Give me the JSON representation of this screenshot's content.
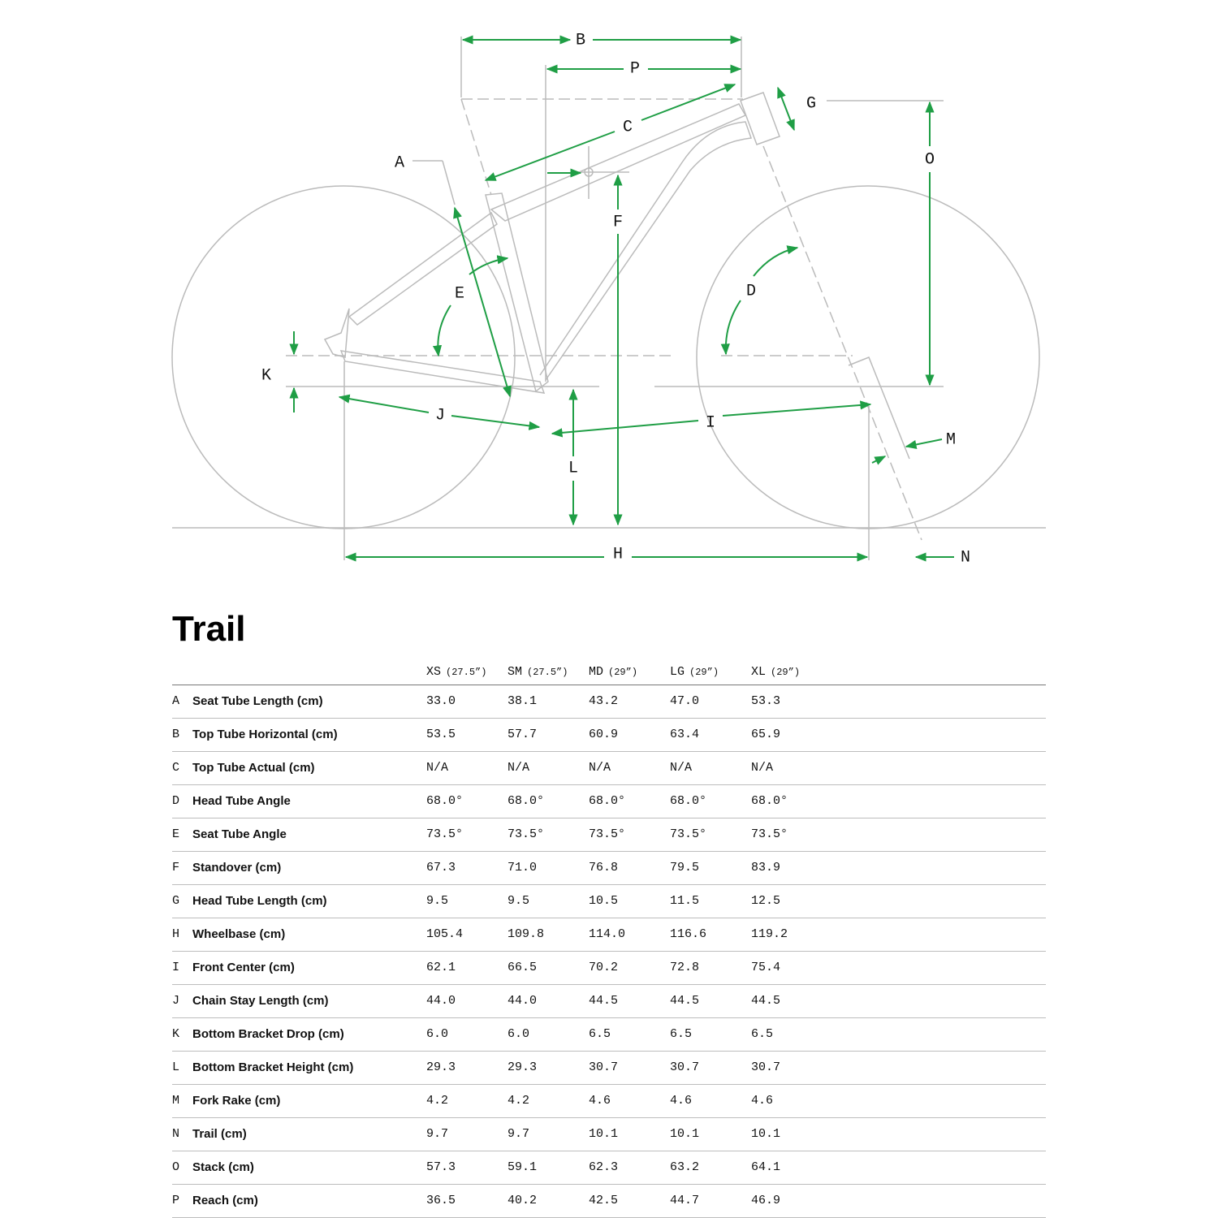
{
  "diagram": {
    "labels": [
      "A",
      "B",
      "C",
      "D",
      "E",
      "F",
      "G",
      "H",
      "I",
      "J",
      "K",
      "L",
      "M",
      "N",
      "O",
      "P"
    ]
  },
  "title": "Trail",
  "table": {
    "columns": [
      {
        "size": "XS",
        "wheel": "(27.5”)"
      },
      {
        "size": "SM",
        "wheel": "(27.5”)"
      },
      {
        "size": "MD",
        "wheel": "(29”)"
      },
      {
        "size": "LG",
        "wheel": "(29”)"
      },
      {
        "size": "XL",
        "wheel": "(29”)"
      }
    ],
    "rows": [
      {
        "letter": "A",
        "name": "Seat Tube Length (cm)",
        "values": [
          "33.0",
          "38.1",
          "43.2",
          "47.0",
          "53.3"
        ]
      },
      {
        "letter": "B",
        "name": "Top Tube Horizontal (cm)",
        "values": [
          "53.5",
          "57.7",
          "60.9",
          "63.4",
          "65.9"
        ]
      },
      {
        "letter": "C",
        "name": "Top Tube Actual (cm)",
        "values": [
          "N/A",
          "N/A",
          "N/A",
          "N/A",
          "N/A"
        ]
      },
      {
        "letter": "D",
        "name": "Head Tube Angle",
        "values": [
          "68.0°",
          "68.0°",
          "68.0°",
          "68.0°",
          "68.0°"
        ]
      },
      {
        "letter": "E",
        "name": "Seat Tube Angle",
        "values": [
          "73.5°",
          "73.5°",
          "73.5°",
          "73.5°",
          "73.5°"
        ]
      },
      {
        "letter": "F",
        "name": "Standover (cm)",
        "values": [
          "67.3",
          "71.0",
          "76.8",
          "79.5",
          "83.9"
        ]
      },
      {
        "letter": "G",
        "name": "Head Tube Length (cm)",
        "values": [
          "9.5",
          "9.5",
          "10.5",
          "11.5",
          "12.5"
        ]
      },
      {
        "letter": "H",
        "name": "Wheelbase (cm)",
        "values": [
          "105.4",
          "109.8",
          "114.0",
          "116.6",
          "119.2"
        ]
      },
      {
        "letter": "I",
        "name": "Front Center (cm)",
        "values": [
          "62.1",
          "66.5",
          "70.2",
          "72.8",
          "75.4"
        ]
      },
      {
        "letter": "J",
        "name": "Chain Stay Length (cm)",
        "values": [
          "44.0",
          "44.0",
          "44.5",
          "44.5",
          "44.5"
        ]
      },
      {
        "letter": "K",
        "name": "Bottom Bracket Drop (cm)",
        "values": [
          "6.0",
          "6.0",
          "6.5",
          "6.5",
          "6.5"
        ]
      },
      {
        "letter": "L",
        "name": "Bottom Bracket Height (cm)",
        "values": [
          "29.3",
          "29.3",
          "30.7",
          "30.7",
          "30.7"
        ]
      },
      {
        "letter": "M",
        "name": "Fork Rake (cm)",
        "values": [
          "4.2",
          "4.2",
          "4.6",
          "4.6",
          "4.6"
        ]
      },
      {
        "letter": "N",
        "name": "Trail (cm)",
        "values": [
          "9.7",
          "9.7",
          "10.1",
          "10.1",
          "10.1"
        ]
      },
      {
        "letter": "O",
        "name": "Stack (cm)",
        "values": [
          "57.3",
          "59.1",
          "62.3",
          "63.2",
          "64.1"
        ]
      },
      {
        "letter": "P",
        "name": "Reach (cm)",
        "values": [
          "36.5",
          "40.2",
          "42.5",
          "44.7",
          "46.9"
        ]
      }
    ]
  }
}
